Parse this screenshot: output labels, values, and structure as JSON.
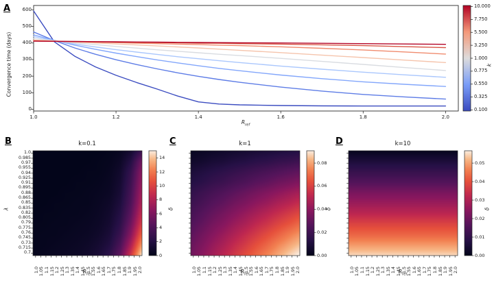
{
  "shared": {
    "xlabel_base": "R",
    "xlabel_sub": "ref"
  },
  "panels": {
    "A": {
      "label": "A",
      "ylabel": "Convergence time (days)",
      "x_tick_labels": [
        "1.0",
        "1.2",
        "1.4",
        "1.6",
        "1.8",
        "2.0"
      ],
      "x_tick_values": [
        1.0,
        1.2,
        1.4,
        1.6,
        1.8,
        2.0
      ],
      "y_tick_labels": [
        "0",
        "100",
        "200",
        "300",
        "400",
        "500",
        "600"
      ],
      "y_tick_values": [
        0,
        100,
        200,
        300,
        400,
        500,
        600
      ],
      "colorbar": {
        "label": "k",
        "tick_labels": [
          "10.000",
          "7.750",
          "5.500",
          "3.250",
          "1.000",
          "0.775",
          "0.550",
          "0.325",
          "0.100"
        ]
      }
    },
    "B": {
      "label": "B",
      "title": "k=0.1",
      "ylabel": "λ",
      "x_tick_labels": [
        "1.0",
        "1.05",
        "1.1",
        "1.15",
        "1.2",
        "1.25",
        "1.3",
        "1.35",
        "1.4",
        "1.45",
        "1.5",
        "1.55",
        "1.6",
        "1.65",
        "1.7",
        "1.75",
        "1.8",
        "1.85",
        "1.9",
        "1.95",
        "2.0"
      ],
      "y_tick_labels": [
        "1.0",
        "0.985",
        "0.97",
        "0.955",
        "0.94",
        "0.925",
        "0.91",
        "0.895",
        "0.88",
        "0.865",
        "0.85",
        "0.835",
        "0.82",
        "0.805",
        "0.79",
        "0.775",
        "0.76",
        "0.745",
        "0.73",
        "0.715",
        "0.7"
      ],
      "colorbar": {
        "label": "δ",
        "tick_labels": [
          "14",
          "12",
          "10",
          "8",
          "6",
          "4",
          "2",
          "0"
        ],
        "tick_values": [
          14,
          12,
          10,
          8,
          6,
          4,
          2,
          0
        ]
      }
    },
    "C": {
      "label": "C",
      "title": "k=1",
      "colorbar": {
        "label": "δ",
        "tick_labels": [
          "0.08",
          "0.06",
          "0.04",
          "0.02",
          "0.00"
        ],
        "tick_values": [
          0.08,
          0.06,
          0.04,
          0.02,
          0.0
        ]
      }
    },
    "D": {
      "label": "D",
      "title": "k=10",
      "colorbar": {
        "label": "δ",
        "tick_labels": [
          "0.05",
          "0.04",
          "0.03",
          "0.02",
          "0.01",
          "0.00"
        ],
        "tick_values": [
          0.05,
          0.04,
          0.03,
          0.02,
          0.01,
          0.0
        ]
      }
    }
  },
  "chart_data": [
    {
      "type": "line",
      "panel": "A",
      "xlabel": "R_ref",
      "ylabel": "Convergence time (days)",
      "xlim": [
        1.0,
        2.031
      ],
      "ylim": [
        -10,
        626
      ],
      "grid": false,
      "colorbar": {
        "label": "k",
        "vmin": 0.1,
        "vmax": 10,
        "colormap": "coolwarm",
        "ticks": [
          10.0,
          7.75,
          5.5,
          3.25,
          1.0,
          0.775,
          0.55,
          0.325,
          0.1
        ]
      },
      "x": [
        1.0,
        1.05,
        1.1,
        1.15,
        1.2,
        1.25,
        1.3,
        1.35,
        1.4,
        1.45,
        1.5,
        1.6,
        1.7,
        1.8,
        1.9,
        2.0
      ],
      "series": [
        {
          "name": "k=0.1",
          "k": 0.1,
          "color": "#3b4cc0",
          "values": [
            593,
            408,
            320,
            256,
            205,
            162,
            122,
            80,
            45,
            32,
            27,
            23,
            21,
            20,
            20,
            20
          ]
        },
        {
          "name": "k=0.325",
          "k": 0.325,
          "color": "#5d7ce6",
          "values": [
            466,
            415,
            370,
            332,
            299,
            270,
            244,
            220,
            199,
            180,
            163,
            134,
            110,
            90,
            75,
            62
          ]
        },
        {
          "name": "k=0.55",
          "k": 0.55,
          "color": "#82a6fb",
          "values": [
            449,
            416,
            387,
            362,
            339,
            318,
            298,
            280,
            263,
            247,
            233,
            207,
            185,
            166,
            151,
            138
          ]
        },
        {
          "name": "k=0.775",
          "k": 0.775,
          "color": "#aac7fd",
          "values": [
            438,
            414,
            394,
            376,
            360,
            345,
            331,
            317,
            305,
            293,
            282,
            261,
            242,
            224,
            208,
            193
          ]
        },
        {
          "name": "k=1",
          "k": 1.0,
          "color": "#d9dce1",
          "values": [
            427,
            413,
            401,
            390,
            379,
            369,
            359,
            350,
            341,
            332,
            324,
            307,
            289,
            271,
            252,
            234
          ]
        },
        {
          "name": "k=3.25",
          "k": 3.25,
          "color": "#f5c4ac",
          "values": [
            418,
            412,
            406,
            400,
            394,
            388,
            382,
            376,
            370,
            363,
            356,
            342,
            327,
            312,
            297,
            282
          ]
        },
        {
          "name": "k=5.5",
          "k": 5.5,
          "color": "#f08b6e",
          "values": [
            414,
            411,
            408,
            405,
            402,
            399,
            396,
            393,
            390,
            387,
            384,
            377,
            368,
            358,
            346,
            333
          ]
        },
        {
          "name": "k=7.75",
          "k": 7.75,
          "color": "#d85646",
          "values": [
            412,
            410,
            408,
            407,
            405,
            404,
            402,
            401,
            399,
            398,
            396,
            393,
            389,
            384,
            378,
            372
          ]
        },
        {
          "name": "k=10",
          "k": 10.0,
          "color": "#b40426",
          "values": [
            411,
            410,
            409,
            408,
            407,
            406,
            405,
            404,
            403,
            402,
            401,
            400,
            398,
            396,
            394,
            392
          ]
        }
      ]
    },
    {
      "type": "heatmap",
      "panel": "B",
      "title": "k=0.1",
      "xlabel": "R_ref",
      "ylabel": "λ",
      "zlabel": "δ",
      "colormap": "rocket",
      "vmax": 15.05,
      "x_values": [
        1.0,
        1.1,
        1.2,
        1.3,
        1.4,
        1.5,
        1.6,
        1.7,
        1.8,
        1.9,
        2.0
      ],
      "lambda_values": [
        1.0,
        0.97,
        0.94,
        0.91,
        0.88,
        0.85,
        0.82,
        0.79,
        0.76,
        0.73,
        0.7
      ],
      "grid": [
        [
          0,
          0,
          0,
          0,
          0,
          0,
          0,
          0.1,
          0.3,
          1.0,
          3.0
        ],
        [
          0,
          0,
          0,
          0,
          0,
          0,
          0.1,
          0.2,
          0.6,
          2.0,
          5.5
        ],
        [
          0,
          0,
          0,
          0,
          0,
          0.1,
          0.1,
          0.3,
          0.9,
          2.8,
          6.5
        ],
        [
          0,
          0,
          0,
          0,
          0.1,
          0.1,
          0.2,
          0.4,
          1.1,
          3.2,
          7.0
        ],
        [
          0,
          0,
          0,
          0.1,
          0.1,
          0.2,
          0.3,
          0.5,
          1.3,
          3.6,
          7.5
        ],
        [
          0,
          0,
          0.1,
          0.1,
          0.2,
          0.2,
          0.4,
          0.7,
          1.6,
          4.0,
          8.0
        ],
        [
          0,
          0.1,
          0.1,
          0.2,
          0.2,
          0.3,
          0.5,
          0.9,
          2.0,
          4.6,
          8.8
        ],
        [
          0.1,
          0.1,
          0.2,
          0.2,
          0.3,
          0.4,
          0.6,
          1.1,
          2.4,
          5.4,
          9.8
        ],
        [
          0.1,
          0.2,
          0.2,
          0.3,
          0.4,
          0.5,
          0.8,
          1.4,
          3.0,
          6.4,
          11.2
        ],
        [
          0.1,
          0.2,
          0.3,
          0.4,
          0.5,
          0.7,
          1.1,
          1.8,
          3.8,
          7.8,
          13.0
        ],
        [
          0.2,
          0.3,
          0.4,
          0.5,
          0.6,
          0.9,
          1.4,
          2.4,
          4.8,
          9.5,
          15.0
        ]
      ]
    },
    {
      "type": "heatmap",
      "panel": "C",
      "title": "k=1",
      "xlabel": "R_ref",
      "ylabel": "λ",
      "zlabel": "δ",
      "colormap": "rocket",
      "vmax": 0.0907,
      "x_values": [
        1.0,
        1.1,
        1.2,
        1.3,
        1.4,
        1.5,
        1.6,
        1.7,
        1.8,
        1.9,
        2.0
      ],
      "lambda_values": [
        1.0,
        0.97,
        0.94,
        0.91,
        0.88,
        0.85,
        0.82,
        0.79,
        0.76,
        0.73,
        0.7
      ],
      "grid": [
        [
          0.002,
          0.003,
          0.004,
          0.005,
          0.006,
          0.007,
          0.008,
          0.009,
          0.01,
          0.011,
          0.012
        ],
        [
          0.005,
          0.006,
          0.008,
          0.009,
          0.011,
          0.012,
          0.014,
          0.015,
          0.017,
          0.018,
          0.02
        ],
        [
          0.009,
          0.011,
          0.013,
          0.015,
          0.017,
          0.019,
          0.021,
          0.023,
          0.025,
          0.027,
          0.029
        ],
        [
          0.012,
          0.014,
          0.017,
          0.019,
          0.022,
          0.024,
          0.027,
          0.029,
          0.032,
          0.034,
          0.037
        ],
        [
          0.016,
          0.019,
          0.022,
          0.025,
          0.028,
          0.031,
          0.034,
          0.037,
          0.04,
          0.043,
          0.046
        ],
        [
          0.019,
          0.022,
          0.026,
          0.029,
          0.033,
          0.036,
          0.04,
          0.043,
          0.047,
          0.05,
          0.054
        ],
        [
          0.022,
          0.026,
          0.03,
          0.034,
          0.038,
          0.042,
          0.046,
          0.05,
          0.054,
          0.058,
          0.062
        ],
        [
          0.025,
          0.029,
          0.034,
          0.038,
          0.043,
          0.047,
          0.052,
          0.056,
          0.061,
          0.065,
          0.07
        ],
        [
          0.028,
          0.033,
          0.038,
          0.043,
          0.048,
          0.053,
          0.058,
          0.063,
          0.068,
          0.073,
          0.078
        ],
        [
          0.031,
          0.036,
          0.042,
          0.047,
          0.053,
          0.058,
          0.064,
          0.069,
          0.075,
          0.08,
          0.085
        ],
        [
          0.033,
          0.039,
          0.045,
          0.051,
          0.057,
          0.063,
          0.069,
          0.075,
          0.081,
          0.087,
          0.092
        ]
      ]
    },
    {
      "type": "heatmap",
      "panel": "D",
      "title": "k=10",
      "xlabel": "R_ref",
      "ylabel": "λ",
      "zlabel": "δ",
      "colormap": "rocket",
      "vmax": 0.0567,
      "x_values": [
        1.0,
        1.1,
        1.2,
        1.3,
        1.4,
        1.5,
        1.6,
        1.7,
        1.8,
        1.9,
        2.0
      ],
      "lambda_values": [
        1.0,
        0.97,
        0.94,
        0.91,
        0.88,
        0.85,
        0.82,
        0.79,
        0.76,
        0.73,
        0.7
      ],
      "grid": [
        [
          0.001,
          0.001,
          0.001,
          0.001,
          0.001,
          0.001,
          0.001,
          0.001,
          0.001,
          0.001,
          0.001
        ],
        [
          0.006,
          0.006,
          0.006,
          0.006,
          0.006,
          0.006,
          0.006,
          0.006,
          0.006,
          0.006,
          0.006
        ],
        [
          0.011,
          0.011,
          0.011,
          0.011,
          0.011,
          0.011,
          0.011,
          0.011,
          0.011,
          0.011,
          0.011
        ],
        [
          0.016,
          0.016,
          0.016,
          0.016,
          0.016,
          0.016,
          0.016,
          0.016,
          0.016,
          0.016,
          0.016
        ],
        [
          0.022,
          0.022,
          0.022,
          0.022,
          0.022,
          0.022,
          0.022,
          0.022,
          0.022,
          0.022,
          0.022
        ],
        [
          0.027,
          0.027,
          0.027,
          0.027,
          0.027,
          0.027,
          0.027,
          0.027,
          0.027,
          0.027,
          0.027
        ],
        [
          0.032,
          0.032,
          0.032,
          0.032,
          0.032,
          0.032,
          0.032,
          0.032,
          0.032,
          0.032,
          0.032
        ],
        [
          0.038,
          0.038,
          0.038,
          0.038,
          0.038,
          0.038,
          0.038,
          0.038,
          0.038,
          0.038,
          0.038
        ],
        [
          0.043,
          0.043,
          0.043,
          0.043,
          0.043,
          0.043,
          0.043,
          0.043,
          0.043,
          0.043,
          0.043
        ],
        [
          0.049,
          0.049,
          0.049,
          0.049,
          0.049,
          0.049,
          0.049,
          0.049,
          0.049,
          0.049,
          0.049
        ],
        [
          0.055,
          0.055,
          0.055,
          0.055,
          0.055,
          0.055,
          0.055,
          0.055,
          0.055,
          0.055,
          0.055
        ]
      ]
    }
  ]
}
